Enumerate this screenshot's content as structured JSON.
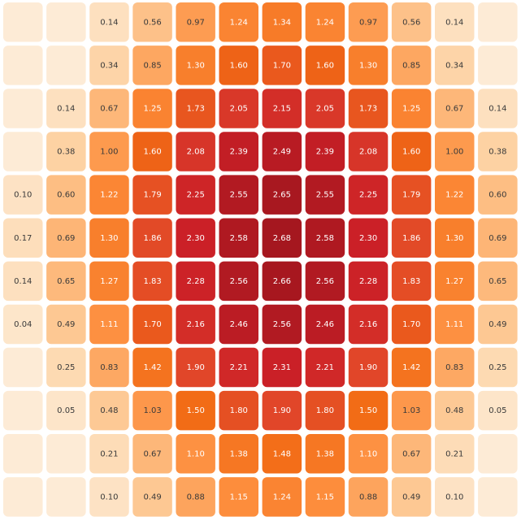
{
  "chart_data": {
    "type": "heatmap",
    "title": "",
    "xlabel": "",
    "ylabel": "",
    "rows": 12,
    "cols": 12,
    "value_range": [
      0,
      2.68
    ],
    "values": [
      [
        null,
        null,
        0.14,
        0.56,
        0.97,
        1.24,
        1.34,
        1.24,
        0.97,
        0.56,
        0.14,
        null
      ],
      [
        null,
        null,
        0.34,
        0.85,
        1.3,
        1.6,
        1.7,
        1.6,
        1.3,
        0.85,
        0.34,
        null
      ],
      [
        null,
        0.14,
        0.67,
        1.25,
        1.73,
        2.05,
        2.15,
        2.05,
        1.73,
        1.25,
        0.67,
        0.14
      ],
      [
        null,
        0.38,
        1.0,
        1.6,
        2.08,
        2.39,
        2.49,
        2.39,
        2.08,
        1.6,
        1.0,
        0.38
      ],
      [
        0.1,
        0.6,
        1.22,
        1.79,
        2.25,
        2.55,
        2.65,
        2.55,
        2.25,
        1.79,
        1.22,
        0.6
      ],
      [
        0.17,
        0.69,
        1.3,
        1.86,
        2.3,
        2.58,
        2.68,
        2.58,
        2.3,
        1.86,
        1.3,
        0.69
      ],
      [
        0.14,
        0.65,
        1.27,
        1.83,
        2.28,
        2.56,
        2.66,
        2.56,
        2.28,
        1.83,
        1.27,
        0.65
      ],
      [
        0.04,
        0.49,
        1.11,
        1.7,
        2.16,
        2.46,
        2.56,
        2.46,
        2.16,
        1.7,
        1.11,
        0.49
      ],
      [
        null,
        0.25,
        0.83,
        1.42,
        1.9,
        2.21,
        2.31,
        2.21,
        1.9,
        1.42,
        0.83,
        0.25
      ],
      [
        null,
        0.05,
        0.48,
        1.03,
        1.5,
        1.8,
        1.9,
        1.8,
        1.5,
        1.03,
        0.48,
        0.05
      ],
      [
        null,
        null,
        0.21,
        0.67,
        1.1,
        1.38,
        1.48,
        1.38,
        1.1,
        0.67,
        0.21,
        null
      ],
      [
        null,
        null,
        0.1,
        0.49,
        0.88,
        1.15,
        1.24,
        1.15,
        0.88,
        0.49,
        0.1,
        null
      ]
    ],
    "colorscale": [
      "#fde8cf",
      "#fdd2a3",
      "#fdae6b",
      "#fd8d3c",
      "#f16913",
      "#e0452a",
      "#cb2027",
      "#a5171f"
    ],
    "empty_color": "#fdebd6",
    "label_dark_color": "#3a3a3a",
    "label_light_color": "#ffffff"
  }
}
